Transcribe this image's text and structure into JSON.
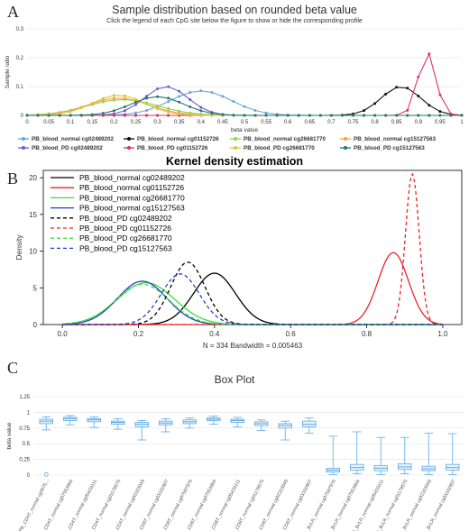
{
  "panels": {
    "a": {
      "letter": "A",
      "title": "Sample distribution based on rounded beta value",
      "subtitle": "Click the legend of each CpG site below the figure to show or hide the corresponding profile",
      "ylabel": "Sample ratio",
      "xlabel": "beta value"
    },
    "b": {
      "letter": "B",
      "title": "Kernel density estimation",
      "ylabel": "Density",
      "annotation": "N = 334   Bandwidth = 0.005463"
    },
    "c": {
      "letter": "C",
      "title": "Box Plot",
      "ylabel": "beta value"
    }
  },
  "chart_data": [
    {
      "type": "line",
      "title": "Sample distribution based on rounded beta value",
      "subtitle": "Click the legend of each CpG site below the figure to show or hide the corresponding profile",
      "xlabel": "beta value",
      "ylabel": "Sample ratio",
      "xlim": [
        0,
        1
      ],
      "ylim": [
        0,
        0.3
      ],
      "xticks": [
        "0",
        "0.05",
        "0.1",
        "0.15",
        "0.2",
        "0.25",
        "0.3",
        "0.35",
        "0.4",
        "0.45",
        "0.5",
        "0.55",
        "0.6",
        "0.65",
        "0.7",
        "0.75",
        "0.8",
        "0.85",
        "0.9",
        "0.95",
        "1"
      ],
      "yticks": [
        "0",
        "0.1",
        "0.2",
        "0.3"
      ],
      "legend_position": "bottom",
      "series": [
        {
          "name": "PB_blood_normal cg02489202",
          "color": "#6aa6d8",
          "peak": 0.085,
          "center": 0.4,
          "width": 0.07
        },
        {
          "name": "PB_blood_normal cg01152726",
          "color": "#111111",
          "peak": 0.1,
          "center": 0.86,
          "width": 0.045
        },
        {
          "name": "PB_blood_normal cg26681770",
          "color": "#8fd14f",
          "peak": 0.055,
          "center": 0.22,
          "width": 0.08
        },
        {
          "name": "PB_blood_normal cg15127563",
          "color": "#f0a34a",
          "peak": 0.06,
          "center": 0.21,
          "width": 0.07
        },
        {
          "name": "PB_blood_PD cg02489202",
          "color": "#6b5fc7",
          "peak": 0.1,
          "center": 0.32,
          "width": 0.05
        },
        {
          "name": "PB_blood_PD cg01152726",
          "color": "#e0306a",
          "peak": 0.22,
          "center": 0.92,
          "width": 0.02
        },
        {
          "name": "PB_blood_PD cg26681770",
          "color": "#d8c83a",
          "peak": 0.07,
          "center": 0.21,
          "width": 0.06
        },
        {
          "name": "PB_blood_PD cg15127563",
          "color": "#1f7a6e",
          "peak": 0.065,
          "center": 0.3,
          "width": 0.06
        }
      ]
    },
    {
      "type": "line",
      "title": "Kernel density estimation",
      "ylabel": "Density",
      "annotation": "N = 334   Bandwidth = 0.005463",
      "xlim": [
        -0.05,
        1.05
      ],
      "ylim": [
        0,
        21
      ],
      "xticks": [
        "0.0",
        "0.2",
        "0.4",
        "0.6",
        "0.8",
        "1.0"
      ],
      "yticks": [
        "0",
        "5",
        "10",
        "15",
        "20"
      ],
      "legend_position": "top-left",
      "series": [
        {
          "name": "PB_blood_normal cg02489202",
          "color": "#000000",
          "dash": false,
          "peak": 7.0,
          "center": 0.4,
          "width": 0.055
        },
        {
          "name": "PB_blood_normal cg01152726",
          "color": "#e8262a",
          "dash": false,
          "peak": 9.8,
          "center": 0.87,
          "width": 0.04
        },
        {
          "name": "PB_blood_normal cg26681770",
          "color": "#3ddc3d",
          "dash": false,
          "peak": 5.7,
          "center": 0.22,
          "width": 0.075
        },
        {
          "name": "PB_blood_normal cg15127563",
          "color": "#1f3fd0",
          "dash": false,
          "peak": 5.9,
          "center": 0.21,
          "width": 0.065
        },
        {
          "name": "PB_blood_PD cg02489202",
          "color": "#000000",
          "dash": true,
          "peak": 8.5,
          "center": 0.33,
          "width": 0.045
        },
        {
          "name": "PB_blood_PD cg01152726",
          "color": "#e8262a",
          "dash": true,
          "peak": 20.5,
          "center": 0.92,
          "width": 0.018
        },
        {
          "name": "PB_blood_PD cg26681770",
          "color": "#3ddc3d",
          "dash": true,
          "peak": 5.5,
          "center": 0.21,
          "width": 0.07
        },
        {
          "name": "PB_blood_PD cg15127563",
          "color": "#1f3fd0",
          "dash": true,
          "peak": 6.9,
          "center": 0.31,
          "width": 0.05
        }
      ]
    },
    {
      "type": "box",
      "title": "Box Plot",
      "ylabel": "beta value",
      "ylim": [
        0,
        1.25
      ],
      "yticks": [
        "0",
        "0.25",
        "0.5",
        "0.75",
        "1",
        "1.25"
      ],
      "color": "#5aa9e6",
      "categories": [
        "PB_CD4T_normal cg0075...",
        "PB_CD4T_normal cg07553966",
        "PB_CD4T_normal cg05433111",
        "PB_CD4T_normal cg01179575",
        "PB_CD4T_normal cg02323049",
        "PB_CD8T_normal cg03102807",
        "PB_CD8T_normal cg07597976",
        "PB_CD8T_normal cg07553966",
        "PB_CD8T_normal cg05433111",
        "PB_CD8T_normal cg01179575",
        "PB_CD8T_normal cg02323049",
        "PB_CD8T_normal cg03102807",
        "PB_BcLR_normal cg07597976",
        "PB_BcLR_normal cg07553966",
        "PB_BcLR_normal cg05433111",
        "PB_BcLR_normal cg01179575",
        "PB_BcLR_normal cg02323049",
        "PB_BcLR_normal cg03102807"
      ],
      "boxes": [
        {
          "min": 0.72,
          "q1": 0.82,
          "median": 0.86,
          "q3": 0.89,
          "max": 0.93,
          "outliers": [
            0.01
          ]
        },
        {
          "min": 0.8,
          "q1": 0.87,
          "median": 0.9,
          "q3": 0.92,
          "max": 0.95,
          "outliers": []
        },
        {
          "min": 0.76,
          "q1": 0.85,
          "median": 0.88,
          "q3": 0.9,
          "max": 0.93,
          "outliers": []
        },
        {
          "min": 0.73,
          "q1": 0.81,
          "median": 0.84,
          "q3": 0.86,
          "max": 0.9,
          "outliers": []
        },
        {
          "min": 0.56,
          "q1": 0.77,
          "median": 0.81,
          "q3": 0.84,
          "max": 0.87,
          "outliers": []
        },
        {
          "min": 0.69,
          "q1": 0.8,
          "median": 0.83,
          "q3": 0.86,
          "max": 0.9,
          "outliers": []
        },
        {
          "min": 0.75,
          "q1": 0.82,
          "median": 0.85,
          "q3": 0.88,
          "max": 0.91,
          "outliers": []
        },
        {
          "min": 0.81,
          "q1": 0.87,
          "median": 0.89,
          "q3": 0.91,
          "max": 0.94,
          "outliers": []
        },
        {
          "min": 0.77,
          "q1": 0.84,
          "median": 0.87,
          "q3": 0.89,
          "max": 0.92,
          "outliers": []
        },
        {
          "min": 0.71,
          "q1": 0.79,
          "median": 0.82,
          "q3": 0.85,
          "max": 0.88,
          "outliers": []
        },
        {
          "min": 0.56,
          "q1": 0.75,
          "median": 0.79,
          "q3": 0.82,
          "max": 0.86,
          "outliers": []
        },
        {
          "min": 0.67,
          "q1": 0.77,
          "median": 0.81,
          "q3": 0.86,
          "max": 0.91,
          "outliers": []
        },
        {
          "min": 0.01,
          "q1": 0.05,
          "median": 0.08,
          "q3": 0.11,
          "max": 0.62,
          "outliers": []
        },
        {
          "min": 0.02,
          "q1": 0.08,
          "median": 0.12,
          "q3": 0.17,
          "max": 0.69,
          "outliers": []
        },
        {
          "min": 0.01,
          "q1": 0.07,
          "median": 0.11,
          "q3": 0.15,
          "max": 0.6,
          "outliers": []
        },
        {
          "min": 0.02,
          "q1": 0.09,
          "median": 0.13,
          "q3": 0.18,
          "max": 0.6,
          "outliers": []
        },
        {
          "min": 0.01,
          "q1": 0.07,
          "median": 0.1,
          "q3": 0.14,
          "max": 0.67,
          "outliers": []
        },
        {
          "min": 0.01,
          "q1": 0.08,
          "median": 0.12,
          "q3": 0.17,
          "max": 0.66,
          "outliers": []
        }
      ]
    }
  ]
}
